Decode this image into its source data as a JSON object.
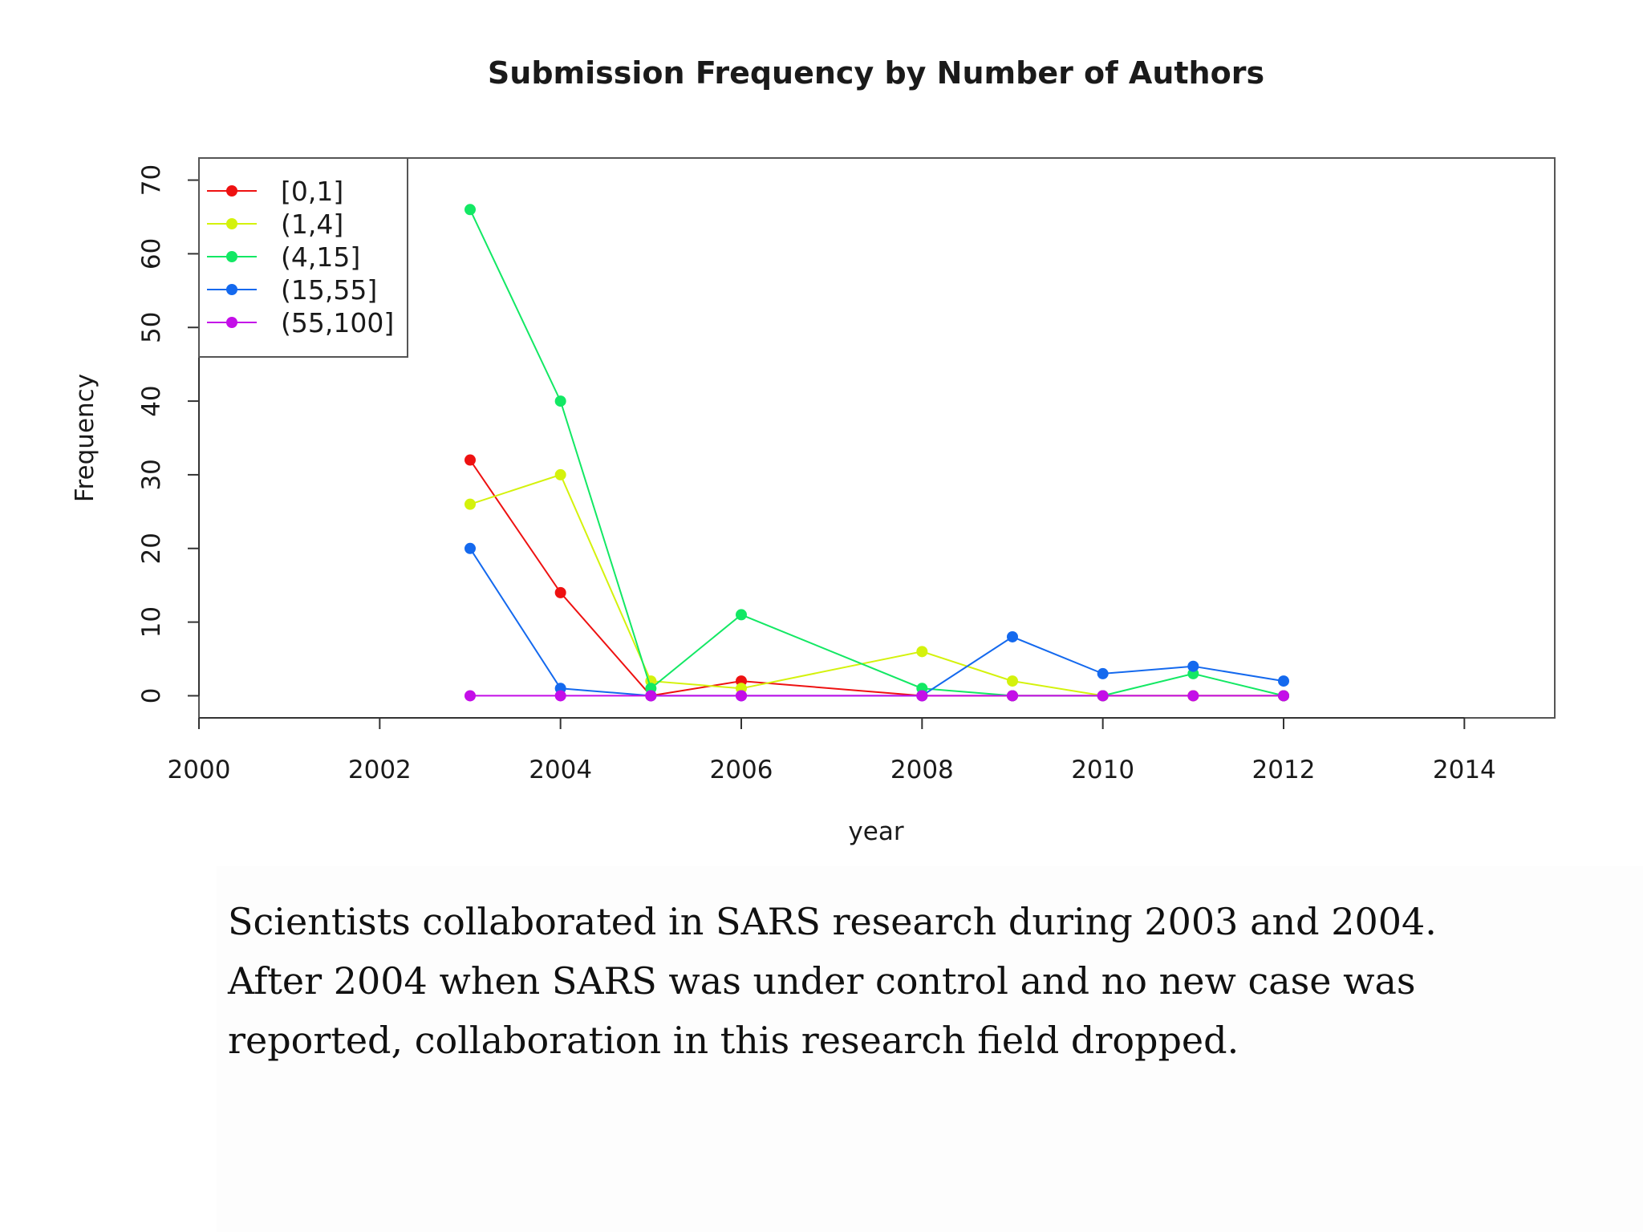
{
  "chart_data": {
    "type": "line",
    "title": "Submission Frequency by Number of Authors",
    "xlabel": "year",
    "ylabel": "Frequency",
    "xlim": [
      2000,
      2015
    ],
    "ylim": [
      -3,
      73
    ],
    "x_ticks": [
      2000,
      2002,
      2004,
      2006,
      2008,
      2010,
      2012,
      2014
    ],
    "y_ticks": [
      0,
      10,
      20,
      30,
      40,
      50,
      60,
      70
    ],
    "x": [
      2003,
      2004,
      2005,
      2006,
      2008,
      2009,
      2010,
      2011,
      2012
    ],
    "legend_position": "top-left",
    "grid": false,
    "series": [
      {
        "name": "[0,1]",
        "color": "#ee1111",
        "values": [
          32,
          14,
          0,
          2,
          0,
          0,
          0,
          0,
          0
        ]
      },
      {
        "name": "(1,4]",
        "color": "#d4f20c",
        "values": [
          26,
          30,
          2,
          1,
          6,
          2,
          0,
          0,
          0
        ]
      },
      {
        "name": "(4,15]",
        "color": "#13e864",
        "values": [
          66,
          40,
          1,
          11,
          1,
          0,
          0,
          3,
          0
        ]
      },
      {
        "name": "(15,55]",
        "color": "#1469ee",
        "values": [
          20,
          1,
          0,
          0,
          0,
          8,
          3,
          4,
          2
        ]
      },
      {
        "name": "(55,100]",
        "color": "#c40ee8",
        "values": [
          0,
          0,
          0,
          0,
          0,
          0,
          0,
          0,
          0
        ]
      }
    ]
  },
  "caption": "Scientists collaborated in SARS research during 2003 and 2004. After 2004 when SARS was under control and no new case was reported, collaboration in this research field dropped."
}
